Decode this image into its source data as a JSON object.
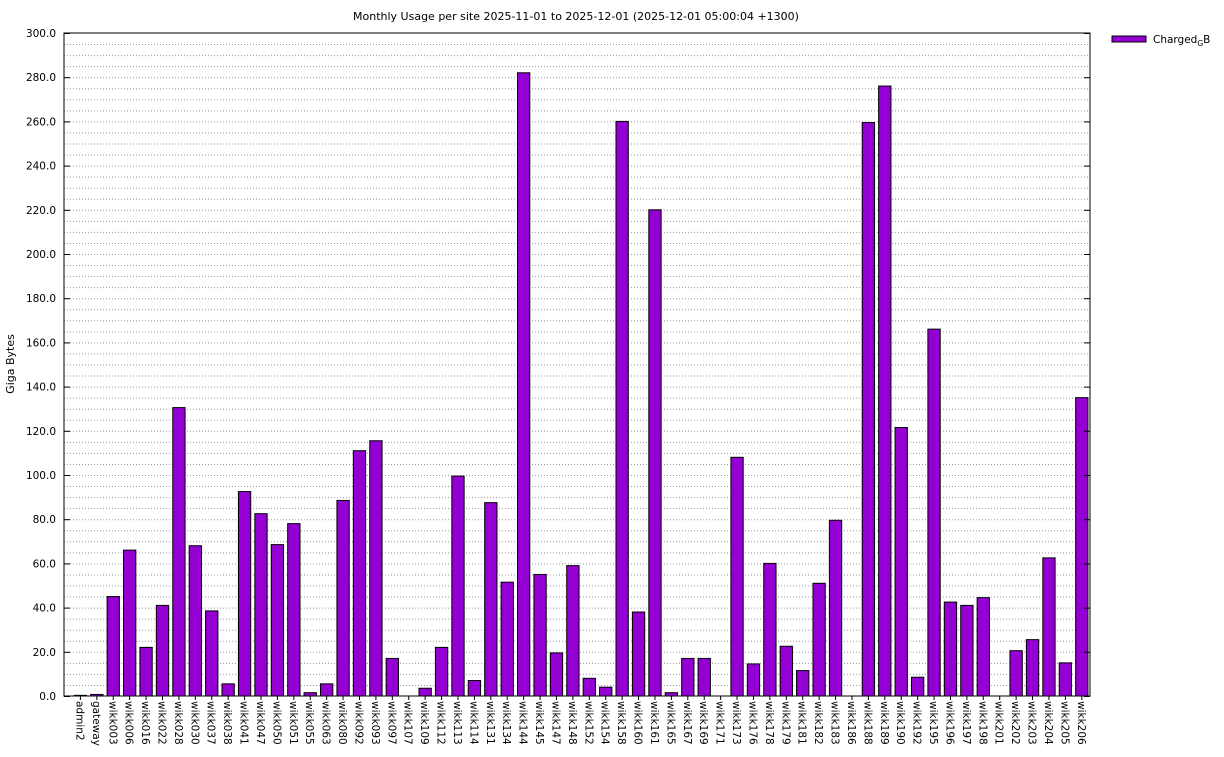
{
  "chart_data": {
    "type": "bar",
    "title": "Monthly Usage per site 2025-11-01 to 2025-12-01 (2025-12-01 05:00:04 +1300)",
    "xlabel": "",
    "ylabel": "Giga Bytes",
    "ylim": [
      0,
      300
    ],
    "yticks": [
      "0.0",
      "20.0",
      "40.0",
      "60.0",
      "80.0",
      "100.0",
      "120.0",
      "140.0",
      "160.0",
      "180.0",
      "200.0",
      "220.0",
      "240.0",
      "260.0",
      "280.0",
      "300.0"
    ],
    "grid": true,
    "legend_position": "top-right",
    "bar_color": "#9400d3",
    "series": [
      {
        "name": "Charged",
        "name_subscript": "G",
        "name_suffix": "B",
        "values": [
          0.3,
          0.7,
          45,
          66,
          22,
          41,
          130.5,
          68,
          38.5,
          5.5,
          92.5,
          82.5,
          68.5,
          78,
          1.5,
          5.5,
          88.5,
          111,
          115.5,
          17,
          0,
          3.5,
          22,
          99.5,
          7,
          87.5,
          51.5,
          282,
          55,
          19.5,
          59,
          8,
          4,
          260,
          38,
          220,
          1.5,
          17,
          17,
          0,
          108,
          14.5,
          60,
          22.5,
          11.5,
          51,
          79.5,
          0,
          259.5,
          276,
          121.5,
          8.5,
          166,
          42.5,
          41,
          44.5,
          0,
          20.5,
          25.5,
          62.5,
          15,
          135
        ]
      }
    ],
    "categories": [
      "admin2",
      "gateway",
      "wikk003",
      "wikk006",
      "wikk016",
      "wikk022",
      "wikk028",
      "wikk030",
      "wikk037",
      "wikk038",
      "wikk041",
      "wikk047",
      "wikk050",
      "wikk051",
      "wikk055",
      "wikk063",
      "wikk080",
      "wikk092",
      "wikk093",
      "wikk097",
      "wikk107",
      "wikk109",
      "wikk112",
      "wikk113",
      "wikk114",
      "wikk131",
      "wikk134",
      "wikk144",
      "wikk145",
      "wikk147",
      "wikk148",
      "wikk152",
      "wikk154",
      "wikk158",
      "wikk160",
      "wikk161",
      "wikk165",
      "wikk167",
      "wikk169",
      "wikk171",
      "wikk173",
      "wikk176",
      "wikk178",
      "wikk179",
      "wikk181",
      "wikk182",
      "wikk183",
      "wikk186",
      "wikk188",
      "wikk189",
      "wikk190",
      "wikk192",
      "wikk195",
      "wikk196",
      "wikk197",
      "wikk198",
      "wikk201",
      "wikk202",
      "wikk203",
      "wikk204",
      "wikk205",
      "wikk206"
    ]
  }
}
